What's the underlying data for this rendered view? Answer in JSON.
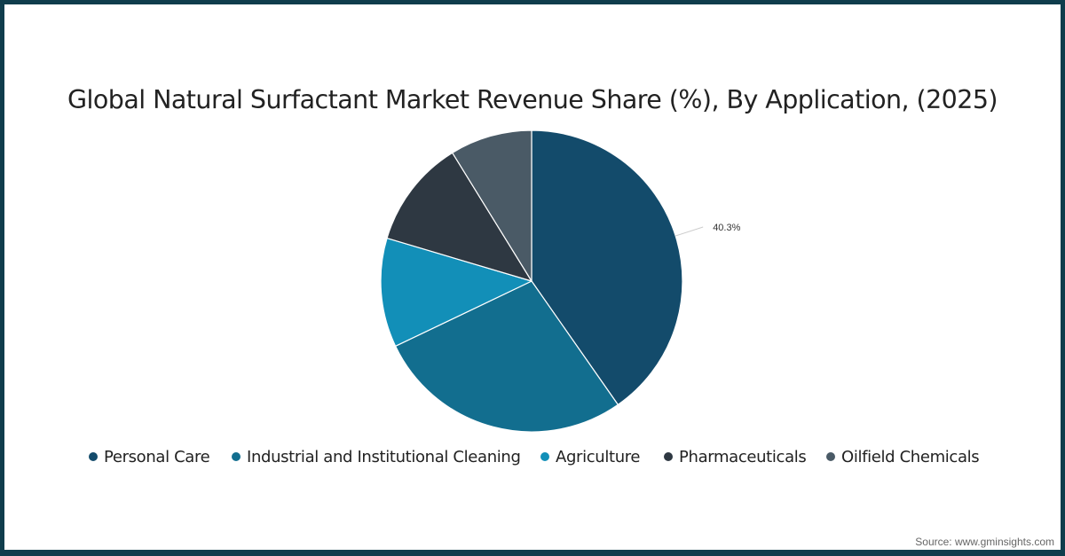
{
  "title": "Global Natural Surfactant Market Revenue Share (%), By Application, (2025)",
  "source": "Source: www.gminsights.com",
  "colors": {
    "frame": "#0f3d4c",
    "personal_care": "#134b6b",
    "industrial_cleaning": "#126e8f",
    "agriculture": "#128fb8",
    "pharmaceuticals": "#2e3842",
    "oilfield_chemicals": "#4a5a66"
  },
  "legend": [
    {
      "label": "Personal Care",
      "color": "#134b6b"
    },
    {
      "label": "Industrial and Institutional Cleaning",
      "color": "#126e8f"
    },
    {
      "label": "Agriculture",
      "color": "#128fb8"
    },
    {
      "label": "Pharmaceuticals",
      "color": "#2e3842"
    },
    {
      "label": "Oilfield Chemicals",
      "color": "#4a5a66"
    }
  ],
  "chart_data": {
    "type": "pie",
    "title": "Global Natural Surfactant Market Revenue Share (%), By Application, (2025)",
    "categories": [
      "Personal Care",
      "Industrial and Institutional Cleaning",
      "Agriculture",
      "Pharmaceuticals",
      "Oilfield Chemicals"
    ],
    "values": [
      40.3,
      27.6,
      11.7,
      11.6,
      8.8
    ],
    "colors": [
      "#134b6b",
      "#126e8f",
      "#128fb8",
      "#2e3842",
      "#4a5a66"
    ],
    "data_labels": [
      {
        "category": "Personal Care",
        "text": "40.3%"
      }
    ],
    "start_angle": 0,
    "direction": "clockwise",
    "legend_position": "bottom",
    "source": "Source: www.gminsights.com"
  }
}
